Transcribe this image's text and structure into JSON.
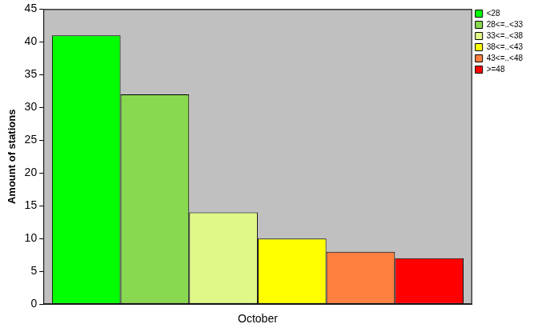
{
  "chart_data": {
    "type": "bar",
    "y_label": "Amount of stations",
    "categories": [
      "October"
    ],
    "series": [
      {
        "name": "<28",
        "color": "#00ff00",
        "values": [
          41
        ]
      },
      {
        "name": "28<=..<33",
        "color": "#88d850",
        "values": [
          32
        ]
      },
      {
        "name": "33<=..<38",
        "color": "#e0f888",
        "values": [
          14
        ]
      },
      {
        "name": "38<=..<43",
        "color": "#ffff00",
        "values": [
          10
        ]
      },
      {
        "name": "43<=..<48",
        "color": "#ff8040",
        "values": [
          8
        ]
      },
      {
        "name": ">=48",
        "color": "#ff0000",
        "values": [
          7
        ]
      }
    ],
    "ylim": [
      0,
      45
    ],
    "yticks": [
      0,
      5,
      10,
      15,
      20,
      25,
      30,
      35,
      40,
      45
    ],
    "grid": true,
    "legend": "upper right"
  }
}
